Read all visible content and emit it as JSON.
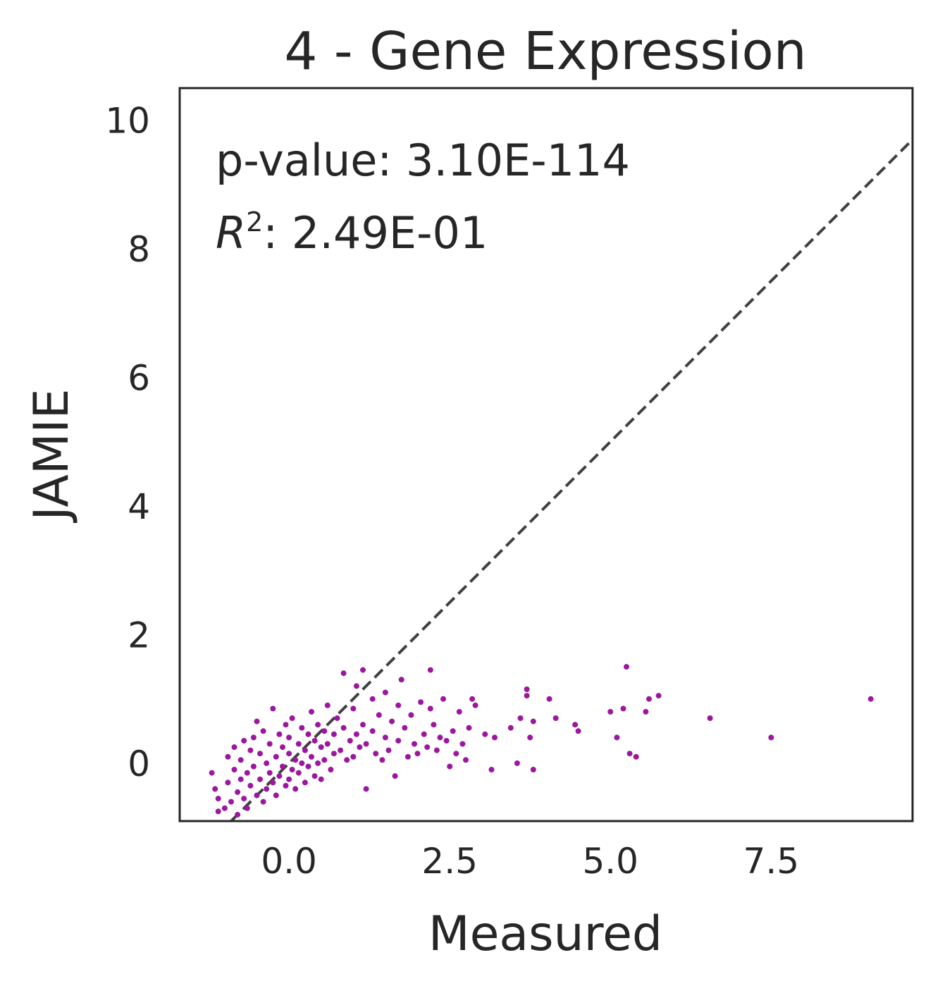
{
  "chart_data": {
    "type": "scatter",
    "title": "4 - Gene Expression",
    "xlabel": "Measured",
    "ylabel": "JAMIE",
    "xlim": [
      -1.7,
      9.7
    ],
    "ylim": [
      -0.9,
      10.5
    ],
    "x_ticks": [
      0.0,
      2.5,
      5.0,
      7.5
    ],
    "x_tick_labels": [
      "0.0",
      "2.5",
      "5.0",
      "7.5"
    ],
    "y_ticks": [
      0,
      2,
      4,
      6,
      8,
      10
    ],
    "y_tick_labels": [
      "0",
      "2",
      "4",
      "6",
      "8",
      "10"
    ],
    "grid": false,
    "point_color": "#9b189e",
    "reference_line": {
      "style": "dashed",
      "color": "#404040",
      "x": [
        -1.7,
        9.7
      ],
      "y": [
        -1.7,
        9.7
      ]
    },
    "annotations": {
      "pvalue_label": "p-value: 3.10E-114",
      "r2_prefix": "R",
      "r2_sup": "2",
      "r2_value": ": 2.49E-01"
    },
    "series": [
      {
        "points": [
          [
            -1.2,
            -0.15
          ],
          [
            -1.15,
            -0.4
          ],
          [
            -1.1,
            -0.55
          ],
          [
            -1.1,
            -0.75
          ],
          [
            -1.0,
            -0.7
          ],
          [
            -0.95,
            0.1
          ],
          [
            -0.95,
            -0.3
          ],
          [
            -0.9,
            -0.6
          ],
          [
            -0.85,
            0.25
          ],
          [
            -0.85,
            -0.1
          ],
          [
            -0.8,
            -0.45
          ],
          [
            -0.8,
            -0.8
          ],
          [
            -0.75,
            0.05
          ],
          [
            -0.75,
            -0.25
          ],
          [
            -0.7,
            0.35
          ],
          [
            -0.7,
            -0.55
          ],
          [
            -0.65,
            -0.15
          ],
          [
            -0.65,
            -0.7
          ],
          [
            -0.6,
            0.2
          ],
          [
            -0.6,
            -0.35
          ],
          [
            -0.55,
            0.4
          ],
          [
            -0.55,
            -0.05
          ],
          [
            -0.5,
            -0.5
          ],
          [
            -0.5,
            0.65
          ],
          [
            -0.45,
            0.15
          ],
          [
            -0.45,
            -0.25
          ],
          [
            -0.4,
            0.5
          ],
          [
            -0.4,
            -0.6
          ],
          [
            -0.35,
            0.0
          ],
          [
            -0.35,
            -0.4
          ],
          [
            -0.3,
            0.3
          ],
          [
            -0.3,
            -0.15
          ],
          [
            -0.25,
            0.85
          ],
          [
            -0.25,
            -0.3
          ],
          [
            -0.2,
            0.1
          ],
          [
            -0.2,
            -0.5
          ],
          [
            -0.15,
            0.45
          ],
          [
            -0.15,
            -0.2
          ],
          [
            -0.1,
            0.25
          ],
          [
            -0.1,
            -0.05
          ],
          [
            -0.05,
            0.6
          ],
          [
            -0.05,
            -0.35
          ],
          [
            0.0,
            0.15
          ],
          [
            0.0,
            -0.25
          ],
          [
            0.0,
            0.4
          ],
          [
            0.05,
            -0.1
          ],
          [
            0.05,
            0.7
          ],
          [
            0.1,
            0.05
          ],
          [
            0.1,
            -0.4
          ],
          [
            0.15,
            0.3
          ],
          [
            0.15,
            -0.15
          ],
          [
            0.2,
            0.55
          ],
          [
            0.2,
            0.0
          ],
          [
            0.25,
            -0.3
          ],
          [
            0.25,
            0.2
          ],
          [
            0.3,
            0.45
          ],
          [
            0.3,
            -0.05
          ],
          [
            0.35,
            0.8
          ],
          [
            0.35,
            0.1
          ],
          [
            0.4,
            -0.2
          ],
          [
            0.4,
            0.35
          ],
          [
            0.45,
            0.6
          ],
          [
            0.45,
            0.0
          ],
          [
            0.5,
            0.25
          ],
          [
            0.5,
            -0.25
          ],
          [
            0.55,
            0.5
          ],
          [
            0.55,
            0.05
          ],
          [
            0.6,
            0.9
          ],
          [
            0.6,
            0.3
          ],
          [
            0.65,
            -0.1
          ],
          [
            0.7,
            0.45
          ],
          [
            0.7,
            0.15
          ],
          [
            0.75,
            0.7
          ],
          [
            0.8,
            0.2
          ],
          [
            0.85,
            1.4
          ],
          [
            0.85,
            0.55
          ],
          [
            0.9,
            0.05
          ],
          [
            0.95,
            0.35
          ],
          [
            1.0,
            0.85
          ],
          [
            1.0,
            0.1
          ],
          [
            1.05,
            1.2
          ],
          [
            1.05,
            0.45
          ],
          [
            1.1,
            0.25
          ],
          [
            1.15,
            1.45
          ],
          [
            1.15,
            0.6
          ],
          [
            1.2,
            -0.4
          ],
          [
            1.2,
            0.3
          ],
          [
            1.3,
            1.0
          ],
          [
            1.3,
            0.5
          ],
          [
            1.35,
            0.15
          ],
          [
            1.4,
            0.75
          ],
          [
            1.45,
            0.05
          ],
          [
            1.5,
            1.1
          ],
          [
            1.5,
            0.4
          ],
          [
            1.55,
            0.2
          ],
          [
            1.6,
            0.65
          ],
          [
            1.65,
            -0.2
          ],
          [
            1.7,
            0.9
          ],
          [
            1.7,
            0.35
          ],
          [
            1.75,
            1.3
          ],
          [
            1.8,
            0.55
          ],
          [
            1.85,
            0.1
          ],
          [
            1.9,
            0.75
          ],
          [
            1.95,
            0.3
          ],
          [
            2.0,
            0.15
          ],
          [
            2.05,
            0.95
          ],
          [
            2.1,
            0.45
          ],
          [
            2.15,
            0.25
          ],
          [
            2.2,
            1.45
          ],
          [
            2.2,
            0.85
          ],
          [
            2.25,
            0.6
          ],
          [
            2.3,
            0.2
          ],
          [
            2.35,
            0.4
          ],
          [
            2.4,
            1.0
          ],
          [
            2.45,
            0.35
          ],
          [
            2.5,
            -0.05
          ],
          [
            2.55,
            0.5
          ],
          [
            2.6,
            0.15
          ],
          [
            2.65,
            0.8
          ],
          [
            2.7,
            0.3
          ],
          [
            2.75,
            0.05
          ],
          [
            2.8,
            0.55
          ],
          [
            2.85,
            1.0
          ],
          [
            2.9,
            0.9
          ],
          [
            3.05,
            0.45
          ],
          [
            3.15,
            -0.1
          ],
          [
            3.2,
            0.4
          ],
          [
            3.45,
            0.55
          ],
          [
            3.55,
            0.0
          ],
          [
            3.6,
            0.7
          ],
          [
            3.7,
            1.15
          ],
          [
            3.7,
            1.05
          ],
          [
            3.75,
            0.4
          ],
          [
            3.8,
            -0.1
          ],
          [
            3.8,
            0.65
          ],
          [
            4.05,
            1.0
          ],
          [
            4.15,
            0.7
          ],
          [
            4.45,
            0.6
          ],
          [
            4.5,
            0.5
          ],
          [
            5.0,
            0.8
          ],
          [
            5.1,
            0.4
          ],
          [
            5.2,
            0.85
          ],
          [
            5.25,
            1.5
          ],
          [
            5.3,
            0.15
          ],
          [
            5.4,
            0.1
          ],
          [
            5.55,
            0.8
          ],
          [
            5.6,
            1.0
          ],
          [
            5.75,
            1.05
          ],
          [
            6.55,
            0.7
          ],
          [
            7.5,
            0.4
          ],
          [
            9.05,
            1.0
          ]
        ]
      }
    ]
  }
}
